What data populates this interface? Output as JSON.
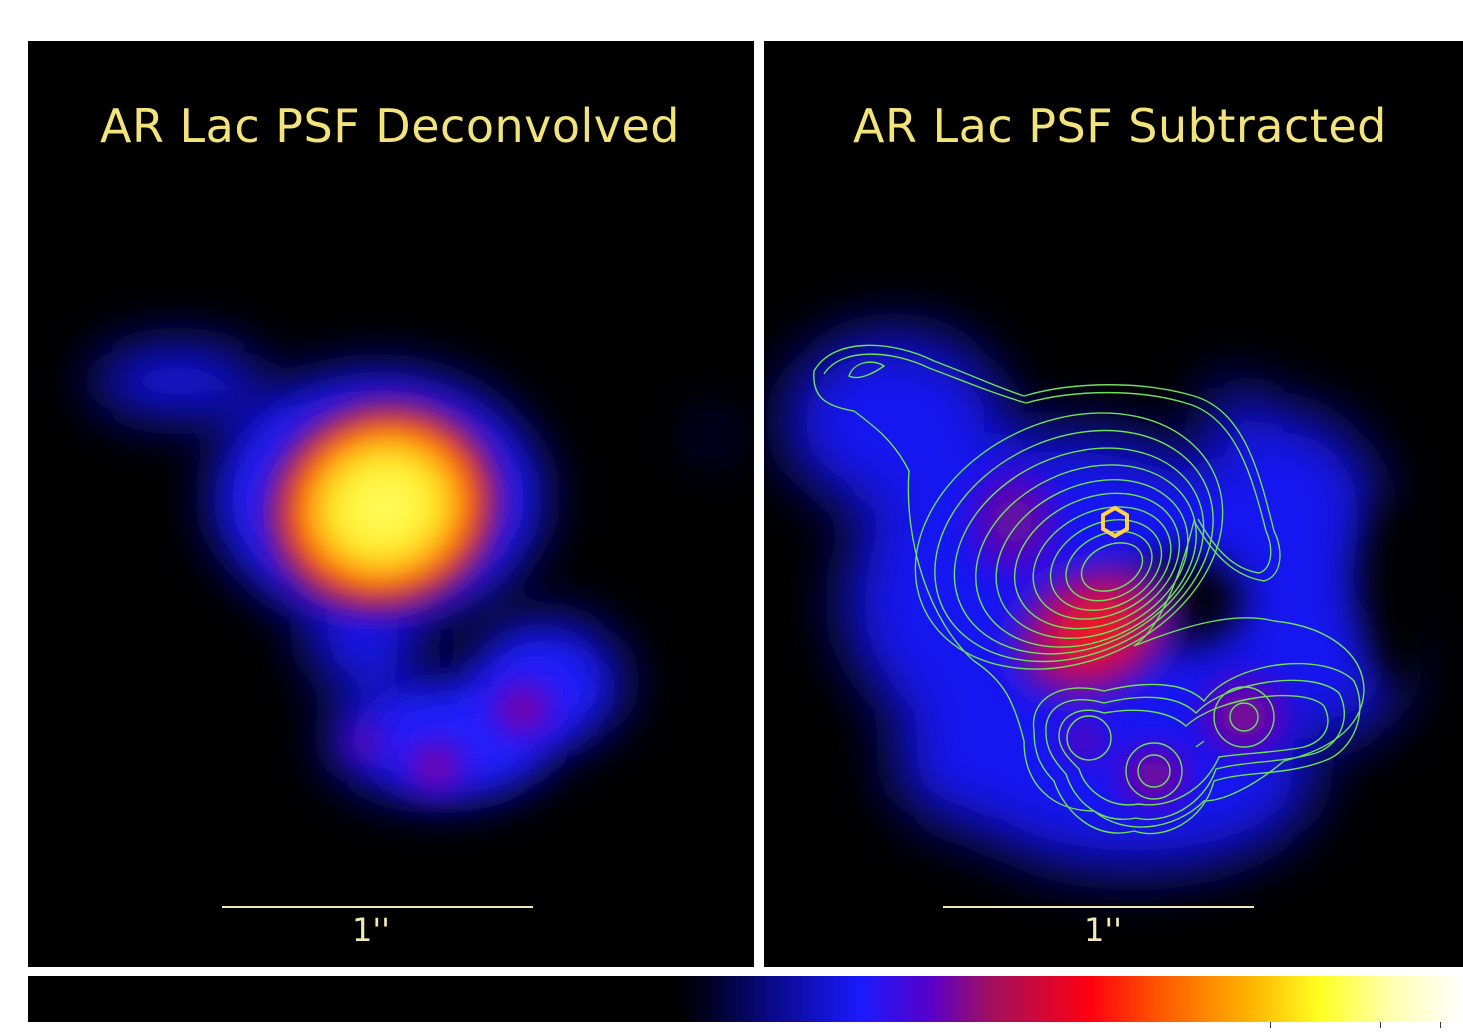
{
  "panels": [
    {
      "title": "AR Lac PSF Deconvolved",
      "scale_label": "1''"
    },
    {
      "title": "AR Lac PSF Subtracted",
      "scale_label": "1''"
    }
  ],
  "colormap": {
    "name": "heat",
    "stops": [
      "#000000",
      "#1a1aff",
      "#a01060",
      "#ff0010",
      "#ffb000",
      "#ffff20",
      "#ffffff"
    ]
  },
  "colors": {
    "title_text": "#f2e47a",
    "contour_color": "#6fe05a",
    "marker_color": "#ffd24a"
  },
  "icons": {
    "source_marker": "source-position-marker-icon"
  }
}
